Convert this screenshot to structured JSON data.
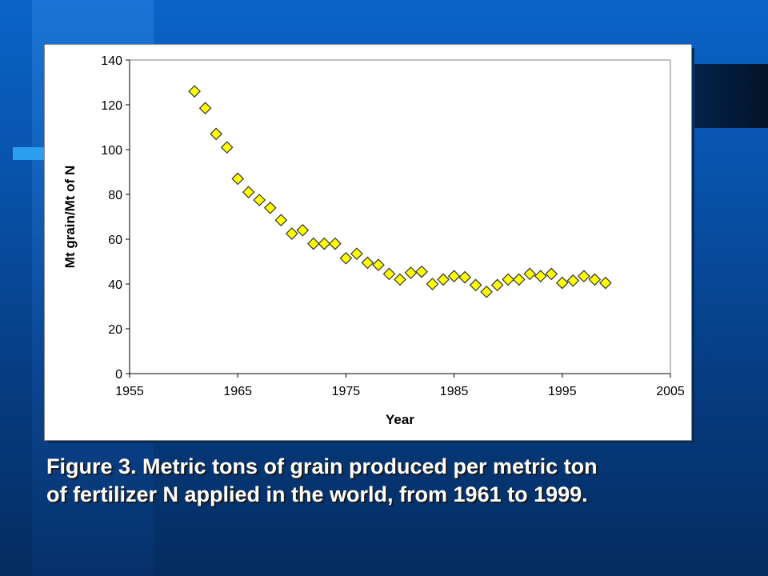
{
  "slide": {
    "caption_line1": "Figure 3.  Metric tons of grain produced per metric ton",
    "caption_line2": "of fertilizer N applied in the world, from 1961 to 1999."
  },
  "colors": {
    "marker_fill": "#ffff00",
    "marker_stroke": "#333333",
    "background": "#0850a6"
  },
  "chart_data": {
    "type": "scatter",
    "title": "",
    "xlabel": "Year",
    "ylabel": "Mt grain/Mt of N",
    "xlim": [
      1955,
      2005
    ],
    "ylim": [
      0,
      140
    ],
    "xticks": [
      1955,
      1965,
      1975,
      1985,
      1995,
      2005
    ],
    "yticks": [
      0,
      20,
      40,
      60,
      80,
      100,
      120,
      140
    ],
    "grid": false,
    "legend": "none",
    "marker": "diamond",
    "x": [
      1961,
      1962,
      1963,
      1964,
      1965,
      1966,
      1967,
      1968,
      1969,
      1970,
      1971,
      1972,
      1973,
      1974,
      1975,
      1976,
      1977,
      1978,
      1979,
      1980,
      1981,
      1982,
      1983,
      1984,
      1985,
      1986,
      1987,
      1988,
      1989,
      1990,
      1991,
      1992,
      1993,
      1994,
      1995,
      1996,
      1997,
      1998,
      1999
    ],
    "y": [
      126,
      118.5,
      107,
      101,
      87,
      81,
      77.5,
      74,
      68.5,
      62.5,
      64,
      58,
      58,
      58,
      51.5,
      53.5,
      49.5,
      48.5,
      44.5,
      42,
      45,
      45.5,
      40,
      42,
      43.5,
      43,
      39.5,
      36.5,
      39.5,
      42,
      42,
      44.5,
      43.5,
      44.5,
      40.5,
      41.5,
      43.5,
      42,
      40.5
    ]
  }
}
